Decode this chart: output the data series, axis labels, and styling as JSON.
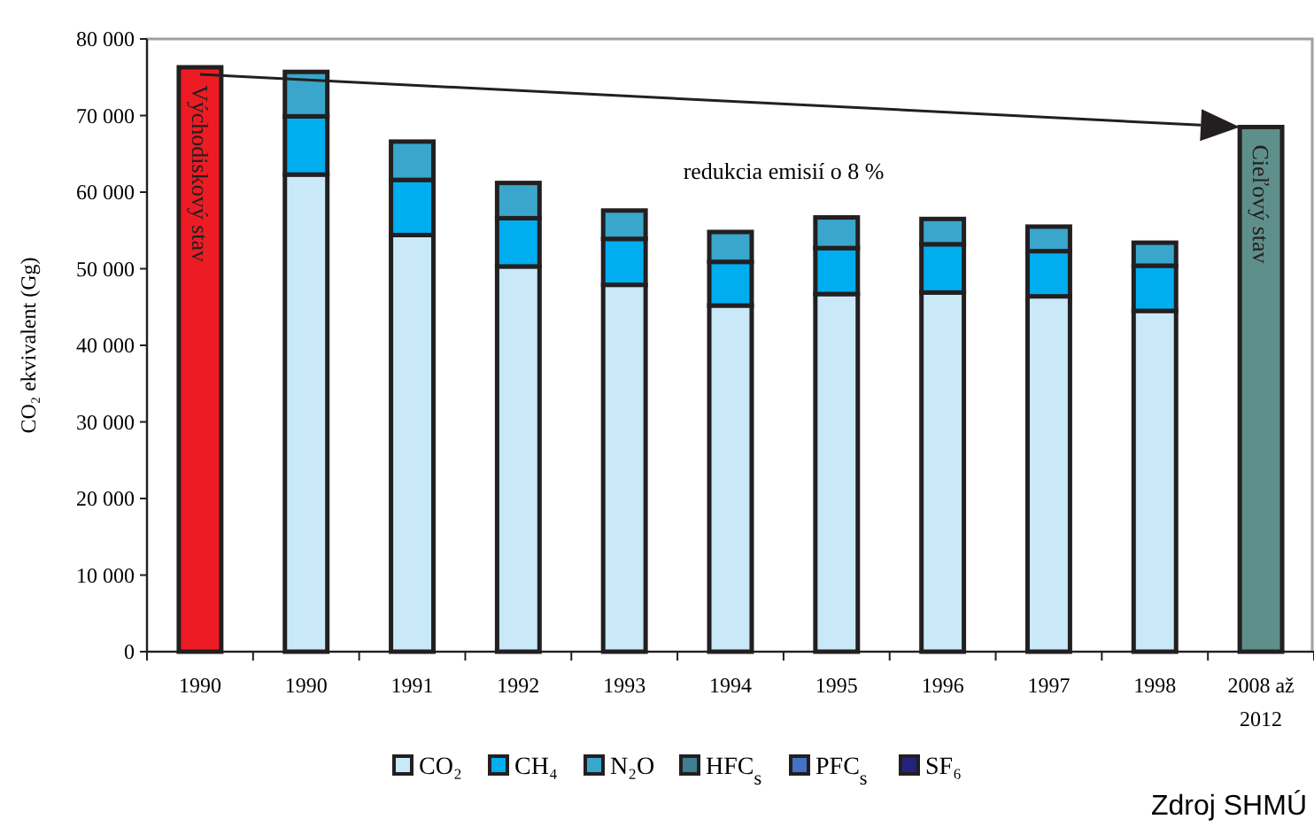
{
  "chart_data": {
    "type": "bar",
    "stacked": true,
    "ylabel": "CO₂ ekvivalent (Gg)",
    "categories": [
      "1990",
      "1990",
      "1991",
      "1992",
      "1993",
      "1994",
      "1995",
      "1996",
      "1997",
      "1998",
      "2008 až 2012"
    ],
    "series": [
      {
        "name": "CO₂",
        "color": "#c9e9f8",
        "values": [
          null,
          62300,
          54400,
          50300,
          47900,
          45200,
          46700,
          46900,
          46400,
          44500,
          null
        ]
      },
      {
        "name": "CH₄",
        "color": "#00aeef",
        "values": [
          null,
          7600,
          7200,
          6300,
          6000,
          5700,
          6000,
          6300,
          5900,
          5900,
          null
        ]
      },
      {
        "name": "N₂O",
        "color": "#3aa6cc",
        "values": [
          null,
          5800,
          5000,
          4600,
          3700,
          3900,
          4000,
          3300,
          3200,
          3000,
          null
        ]
      },
      {
        "name": "HFC$_{s}$",
        "color": "#3f7f91",
        "values": [
          null,
          null,
          null,
          null,
          null,
          null,
          null,
          null,
          null,
          null,
          null
        ]
      },
      {
        "name": "PFC$_{s}$",
        "color": "#4472c4",
        "values": [
          null,
          null,
          null,
          null,
          null,
          null,
          null,
          null,
          null,
          null,
          null
        ]
      },
      {
        "name": "SF₆",
        "color": "#23237f",
        "values": [
          null,
          null,
          null,
          null,
          null,
          null,
          null,
          null,
          null,
          null,
          null
        ]
      },
      {
        "name": "Východiskový stav",
        "color": "#ed1c24",
        "values": [
          76300,
          null,
          null,
          null,
          null,
          null,
          null,
          null,
          null,
          null,
          null
        ]
      },
      {
        "name": "Cieľový stav",
        "color": "#5f8f8a",
        "values": [
          null,
          null,
          null,
          null,
          null,
          null,
          null,
          null,
          null,
          null,
          68500
        ]
      }
    ],
    "ylim": [
      0,
      80000
    ],
    "yticks": [
      {
        "value": 0,
        "label": "0"
      },
      {
        "value": 10000,
        "label": "10 000"
      },
      {
        "value": 20000,
        "label": "20 000"
      },
      {
        "value": 30000,
        "label": "30 000"
      },
      {
        "value": 40000,
        "label": "40 000"
      },
      {
        "value": 50000,
        "label": "50 000"
      },
      {
        "value": 60000,
        "label": "60 000"
      },
      {
        "value": 70000,
        "label": "70 000"
      },
      {
        "value": 80000,
        "label": "80 000"
      }
    ],
    "legend": "bottom",
    "annotations": [
      "redukcia emisií o 8 %",
      "Zdroj SHMÚ"
    ]
  }
}
